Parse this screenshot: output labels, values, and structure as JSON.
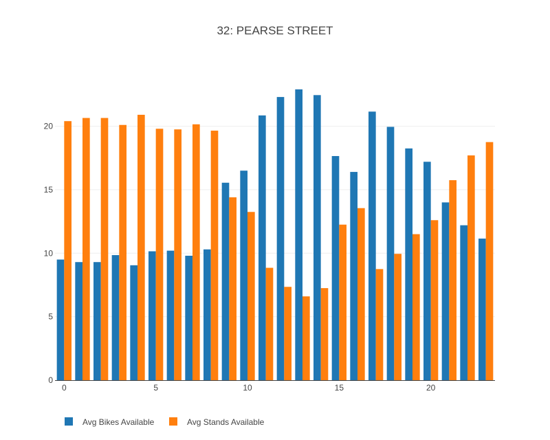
{
  "chart_data": {
    "type": "bar",
    "title": "32: PEARSE STREET",
    "x": [
      0,
      1,
      2,
      3,
      4,
      5,
      6,
      7,
      8,
      9,
      10,
      11,
      12,
      13,
      14,
      15,
      16,
      17,
      18,
      19,
      20,
      21,
      22,
      23
    ],
    "x_tick_labels": [
      "0",
      "5",
      "10",
      "15",
      "20"
    ],
    "y_tick_labels": [
      "0",
      "5",
      "10",
      "15",
      "20"
    ],
    "ylim": [
      0,
      24.2
    ],
    "xlim": [
      -0.5,
      23.5
    ],
    "grid": true,
    "legend_placement": "bottom-left",
    "series": [
      {
        "name": "Avg Bikes Available",
        "color": "#1f77b4",
        "values": [
          9.5,
          9.3,
          9.3,
          9.85,
          9.05,
          10.15,
          10.2,
          9.8,
          10.3,
          15.55,
          16.5,
          20.85,
          22.3,
          22.9,
          22.45,
          17.65,
          16.4,
          21.15,
          19.95,
          18.25,
          17.2,
          14.0,
          12.2,
          11.15
        ]
      },
      {
        "name": "Avg Stands Available",
        "color": "#ff7f0e",
        "values": [
          20.4,
          20.65,
          20.65,
          20.1,
          20.9,
          19.8,
          19.75,
          20.15,
          19.65,
          14.4,
          13.25,
          8.85,
          7.35,
          6.6,
          7.25,
          12.25,
          13.55,
          8.75,
          9.95,
          11.5,
          12.6,
          15.75,
          17.7,
          18.75
        ]
      }
    ]
  }
}
